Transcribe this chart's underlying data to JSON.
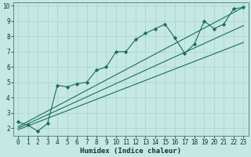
{
  "xlabel": "Humidex (Indice chaleur)",
  "xlim": [
    -0.5,
    23.5
  ],
  "ylim": [
    1.5,
    10.2
  ],
  "xticks": [
    0,
    1,
    2,
    3,
    4,
    5,
    6,
    7,
    8,
    9,
    10,
    11,
    12,
    13,
    14,
    15,
    16,
    17,
    18,
    19,
    20,
    21,
    22,
    23
  ],
  "yticks": [
    2,
    3,
    4,
    5,
    6,
    7,
    8,
    9,
    10
  ],
  "background_color": "#c5e8e2",
  "grid_color": "#b0d5ce",
  "line_color": "#1a6e60",
  "curve_x": [
    0,
    1,
    2,
    3,
    4,
    5,
    6,
    7,
    8,
    9,
    10,
    11,
    12,
    13,
    14,
    15,
    16,
    17,
    18,
    19,
    20,
    21,
    22,
    23
  ],
  "curve_y": [
    2.4,
    2.2,
    1.8,
    2.3,
    4.8,
    4.7,
    4.9,
    5.0,
    5.8,
    6.0,
    7.0,
    7.0,
    7.8,
    8.2,
    8.5,
    8.8,
    7.9,
    6.9,
    7.5,
    9.0,
    8.5,
    8.8,
    9.8,
    9.9
  ],
  "line1_x": [
    0,
    23
  ],
  "line1_y": [
    2.1,
    9.9
  ],
  "line2_x": [
    0,
    23
  ],
  "line2_y": [
    1.9,
    7.6
  ],
  "line3_x": [
    0,
    23
  ],
  "line3_y": [
    2.0,
    8.7
  ]
}
